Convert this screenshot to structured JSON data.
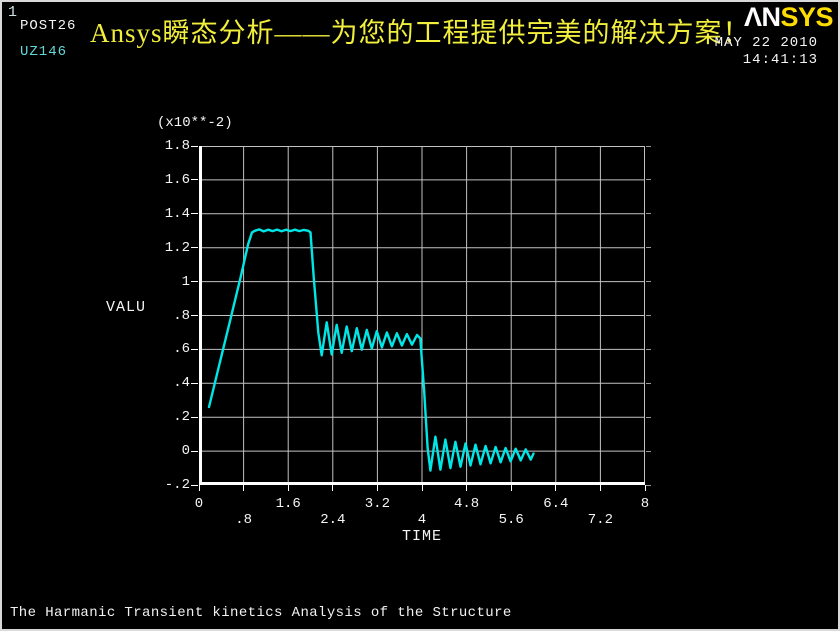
{
  "window": {
    "number": "1",
    "routine_label": "POST26",
    "variable_label": "UZ146"
  },
  "header": {
    "banner_title": "Ansys瞬态分析——为您的工程提供完美的解决方案！",
    "logo_an": "ΛN",
    "logo_sys": "SYS",
    "date": "MAY 22 2010",
    "time": "14:41:13"
  },
  "footer": {
    "caption": "The Harmanic Transient kinetics Analysis of the Structure"
  },
  "colors": {
    "background": "#000000",
    "curve": "#00e6e6",
    "grid": "#c2c2c2",
    "axis": "#ffffff",
    "banner_yellow": "#f2ee3c",
    "logo_yellow": "#ffdc00",
    "cyan_text": "#63d6d6"
  },
  "chart_data": {
    "type": "line",
    "title": "",
    "xlabel": "TIME",
    "ylabel": "VALU",
    "y_axis_multiplier": "(x10**-2)",
    "xlim": [
      0,
      8
    ],
    "ylim": [
      -0.2,
      1.8
    ],
    "grid": true,
    "legend_position": "none",
    "xticks": [
      0,
      0.8,
      1.6,
      2.4,
      3.2,
      4,
      4.8,
      5.6,
      6.4,
      7.2,
      8
    ],
    "xtick_labels": [
      "0",
      ".8",
      "1.6",
      "2.4",
      "3.2",
      "4",
      "4.8",
      "5.6",
      "6.4",
      "7.2",
      "8"
    ],
    "yticks": [
      1.8,
      1.6,
      1.4,
      1.2,
      1.0,
      0.8,
      0.6,
      0.4,
      0.2,
      0.0,
      -0.2
    ],
    "ytick_labels": [
      "1.8",
      "1.6",
      "1.4",
      "1.2",
      "1",
      ".8",
      ".6",
      ".4",
      ".2",
      "0",
      "-.2"
    ],
    "series": [
      {
        "name": "UZ146",
        "color": "#00e6e6",
        "points": [
          [
            0.18,
            0.26
          ],
          [
            0.35,
            0.49
          ],
          [
            0.55,
            0.76
          ],
          [
            0.75,
            1.03
          ],
          [
            0.88,
            1.22
          ],
          [
            0.95,
            1.29
          ],
          [
            1.0,
            1.3
          ],
          [
            1.08,
            1.308
          ],
          [
            1.16,
            1.296
          ],
          [
            1.24,
            1.306
          ],
          [
            1.32,
            1.298
          ],
          [
            1.4,
            1.307
          ],
          [
            1.48,
            1.297
          ],
          [
            1.56,
            1.306
          ],
          [
            1.64,
            1.298
          ],
          [
            1.72,
            1.306
          ],
          [
            1.8,
            1.298
          ],
          [
            1.88,
            1.305
          ],
          [
            1.96,
            1.3
          ],
          [
            2.0,
            1.29
          ],
          [
            2.06,
            1.02
          ],
          [
            2.14,
            0.7
          ],
          [
            2.2,
            0.565
          ],
          [
            2.29,
            0.76
          ],
          [
            2.38,
            0.57
          ],
          [
            2.47,
            0.745
          ],
          [
            2.56,
            0.58
          ],
          [
            2.65,
            0.735
          ],
          [
            2.74,
            0.59
          ],
          [
            2.83,
            0.725
          ],
          [
            2.92,
            0.598
          ],
          [
            3.01,
            0.715
          ],
          [
            3.1,
            0.605
          ],
          [
            3.19,
            0.708
          ],
          [
            3.28,
            0.612
          ],
          [
            3.37,
            0.7
          ],
          [
            3.46,
            0.618
          ],
          [
            3.55,
            0.695
          ],
          [
            3.64,
            0.623
          ],
          [
            3.73,
            0.69
          ],
          [
            3.82,
            0.628
          ],
          [
            3.91,
            0.685
          ],
          [
            3.97,
            0.665
          ],
          [
            4.04,
            0.35
          ],
          [
            4.1,
            0.02
          ],
          [
            4.15,
            -0.115
          ],
          [
            4.24,
            0.085
          ],
          [
            4.33,
            -0.11
          ],
          [
            4.42,
            0.068
          ],
          [
            4.51,
            -0.1
          ],
          [
            4.6,
            0.055
          ],
          [
            4.69,
            -0.092
          ],
          [
            4.78,
            0.045
          ],
          [
            4.87,
            -0.085
          ],
          [
            4.96,
            0.038
          ],
          [
            5.05,
            -0.078
          ],
          [
            5.14,
            0.03
          ],
          [
            5.23,
            -0.072
          ],
          [
            5.32,
            0.024
          ],
          [
            5.41,
            -0.066
          ],
          [
            5.5,
            0.018
          ],
          [
            5.59,
            -0.06
          ],
          [
            5.68,
            0.014
          ],
          [
            5.77,
            -0.055
          ],
          [
            5.86,
            0.01
          ],
          [
            5.95,
            -0.05
          ],
          [
            6.0,
            -0.015
          ]
        ]
      }
    ]
  }
}
